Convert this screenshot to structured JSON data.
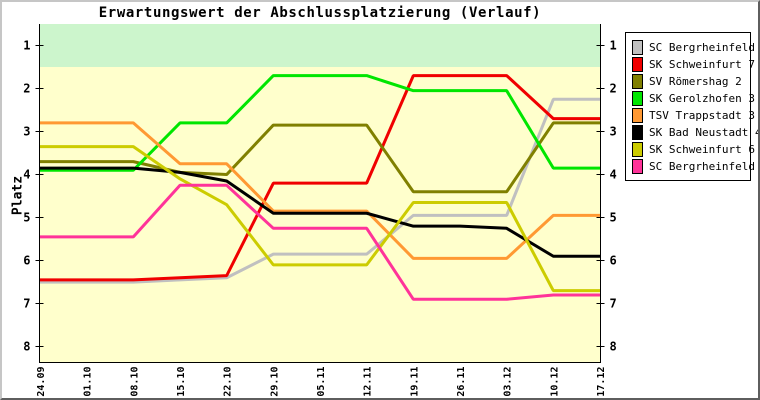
{
  "chart_data": {
    "type": "line",
    "title": "Erwartungswert der Abschlussplatzierung (Verlauf)",
    "ylabel": "Platz",
    "x_labels": [
      "24.09",
      "01.10",
      "08.10",
      "15.10",
      "22.10",
      "29.10",
      "05.11",
      "12.11",
      "19.11",
      "26.11",
      "03.12",
      "10.12",
      "17.12"
    ],
    "y_ticks": [
      1,
      2,
      3,
      4,
      5,
      6,
      7,
      8
    ],
    "ylim": [
      0.5,
      8.37
    ],
    "y_axis_inverted": true,
    "grid": false,
    "legend_position": "right-outside",
    "plot_bg_color": "#ffffcc",
    "band_range": [
      0.5,
      1.5
    ],
    "band_color": "#ccf5cc",
    "axis_color": "#000000",
    "series": [
      {
        "name": "SC Bergrheinfeld 5",
        "color": "#c0c0c0",
        "values": [
          6.5,
          6.5,
          6.5,
          6.45,
          6.4,
          5.85,
          5.85,
          5.85,
          4.95,
          4.95,
          4.95,
          2.25,
          2.25
        ]
      },
      {
        "name": "SK Schweinfurt 7",
        "color": "#f00000",
        "values": [
          6.45,
          6.45,
          6.45,
          6.4,
          6.35,
          4.2,
          4.2,
          4.2,
          1.7,
          1.7,
          1.7,
          2.7,
          2.7
        ]
      },
      {
        "name": "SV Römershag 2",
        "color": "#808000",
        "values": [
          3.7,
          3.7,
          3.7,
          3.95,
          4.0,
          2.85,
          2.85,
          2.85,
          4.4,
          4.4,
          4.4,
          2.8,
          2.8
        ]
      },
      {
        "name": "SK Gerolzhofen 3",
        "color": "#00e600",
        "values": [
          3.9,
          3.9,
          3.9,
          2.8,
          2.8,
          1.7,
          1.7,
          1.7,
          2.05,
          2.05,
          2.05,
          3.85,
          3.85
        ]
      },
      {
        "name": "TSV Trappstadt 3",
        "color": "#ff9933",
        "values": [
          2.8,
          2.8,
          2.8,
          3.75,
          3.75,
          4.85,
          4.85,
          4.85,
          5.95,
          5.95,
          5.95,
          4.95,
          4.95
        ]
      },
      {
        "name": "SK Bad Neustadt 4",
        "color": "#000000",
        "values": [
          3.85,
          3.85,
          3.85,
          3.95,
          4.15,
          4.9,
          4.9,
          4.9,
          5.2,
          5.2,
          5.25,
          5.9,
          5.9
        ]
      },
      {
        "name": "SK Schweinfurt 6",
        "color": "#cccc00",
        "values": [
          3.35,
          3.35,
          3.35,
          4.1,
          4.7,
          6.1,
          6.1,
          6.1,
          4.65,
          4.65,
          4.65,
          6.7,
          6.7
        ]
      },
      {
        "name": "SC Bergrheinfeld 4",
        "color": "#ff3399",
        "values": [
          5.45,
          5.45,
          5.45,
          4.25,
          4.25,
          5.25,
          5.25,
          5.25,
          6.9,
          6.9,
          6.9,
          6.8,
          6.8
        ]
      }
    ]
  }
}
